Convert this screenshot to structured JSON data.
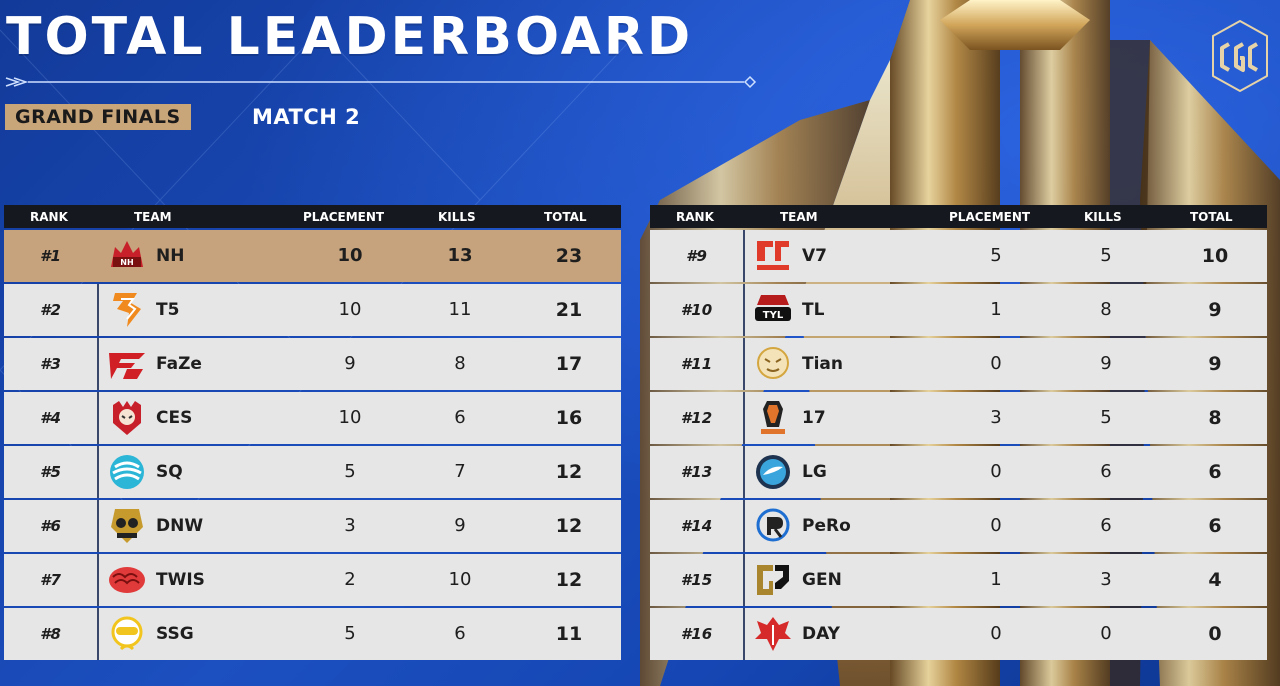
{
  "header": {
    "title": "TOTAL LEADERBOARD",
    "stage": "GRAND FINALS",
    "match": "MATCH 2"
  },
  "colors": {
    "background": "#1741a3",
    "header_bar": "#15181f",
    "row": "#e6e6e6",
    "highlight_row": "#c6a37c",
    "badge": "#c9a57a",
    "gold_accent": "#d8b56a"
  },
  "table_headers": {
    "rank": "RANK",
    "team": "TEAM",
    "placement": "PLACEMENT",
    "kills": "KILLS",
    "total": "TOTAL"
  },
  "left_rows": [
    {
      "rank": "#1",
      "team": "NH",
      "placement": "10",
      "kills": "13",
      "total": "23",
      "logo": "nh-logo",
      "logo_color": "#c8202a"
    },
    {
      "rank": "#2",
      "team": "T5",
      "placement": "10",
      "kills": "11",
      "total": "21",
      "logo": "t5-logo",
      "logo_color": "#f08a1e"
    },
    {
      "rank": "#3",
      "team": "FaZe",
      "placement": "9",
      "kills": "8",
      "total": "17",
      "logo": "faze-logo",
      "logo_color": "#d11f26"
    },
    {
      "rank": "#4",
      "team": "CES",
      "placement": "10",
      "kills": "6",
      "total": "16",
      "logo": "ces-logo",
      "logo_color": "#c8202a"
    },
    {
      "rank": "#5",
      "team": "SQ",
      "placement": "5",
      "kills": "7",
      "total": "12",
      "logo": "sq-logo",
      "logo_color": "#2bb5d6"
    },
    {
      "rank": "#6",
      "team": "DNW",
      "placement": "3",
      "kills": "9",
      "total": "12",
      "logo": "dnw-logo",
      "logo_color": "#c79a2e"
    },
    {
      "rank": "#7",
      "team": "TWIS",
      "placement": "2",
      "kills": "10",
      "total": "12",
      "logo": "twis-logo",
      "logo_color": "#e03a3a"
    },
    {
      "rank": "#8",
      "team": "SSG",
      "placement": "5",
      "kills": "6",
      "total": "11",
      "logo": "ssg-logo",
      "logo_color": "#f2c51e"
    }
  ],
  "right_rows": [
    {
      "rank": "#9",
      "team": "V7",
      "placement": "5",
      "kills": "5",
      "total": "10",
      "logo": "v7-logo",
      "logo_color": "#e03a2a"
    },
    {
      "rank": "#10",
      "team": "TL",
      "placement": "1",
      "kills": "8",
      "total": "9",
      "logo": "tl-logo",
      "logo_color": "#b71c1c"
    },
    {
      "rank": "#11",
      "team": "Tian",
      "placement": "0",
      "kills": "9",
      "total": "9",
      "logo": "tian-logo",
      "logo_color": "#d4a640"
    },
    {
      "rank": "#12",
      "team": "17",
      "placement": "3",
      "kills": "5",
      "total": "8",
      "logo": "seventeen-logo",
      "logo_color": "#e0742a"
    },
    {
      "rank": "#13",
      "team": "LG",
      "placement": "0",
      "kills": "6",
      "total": "6",
      "logo": "lg-logo",
      "logo_color": "#3aa5dc"
    },
    {
      "rank": "#14",
      "team": "PeRo",
      "placement": "0",
      "kills": "6",
      "total": "6",
      "logo": "pero-logo",
      "logo_color": "#1e6fd1"
    },
    {
      "rank": "#15",
      "team": "GEN",
      "placement": "1",
      "kills": "3",
      "total": "4",
      "logo": "gen-logo",
      "logo_color": "#a9852e"
    },
    {
      "rank": "#16",
      "team": "DAY",
      "placement": "0",
      "kills": "0",
      "total": "0",
      "logo": "day-logo",
      "logo_color": "#d62a2a"
    }
  ]
}
